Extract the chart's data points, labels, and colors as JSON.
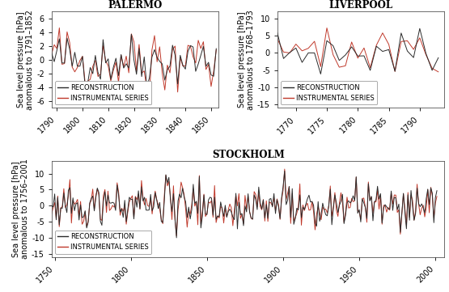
{
  "palermo": {
    "title": "PALERMO",
    "ylabel_line1": "Sea level pressure [hPa]",
    "ylabel_line2": "anomalous to 1791–1852",
    "xlim": [
      1788,
      1853
    ],
    "ylim": [
      -7,
      7
    ],
    "yticks": [
      -6,
      -4,
      -2,
      0,
      2,
      4,
      6
    ],
    "xticks": [
      1790,
      1800,
      1810,
      1820,
      1830,
      1840,
      1850
    ],
    "x_start": 1788,
    "x_end": 1852,
    "legend_labels": [
      "RECONSTRUCTION",
      "INSTRUMENTAL SERIES"
    ]
  },
  "liverpool": {
    "title": "LIVERPOOL",
    "ylabel_line1": "Sea level pressure [hPa]",
    "ylabel_line2": "anomalous to 1768–1793",
    "xlim": [
      1767,
      1794
    ],
    "ylim": [
      -16,
      12
    ],
    "yticks": [
      -15,
      -10,
      -5,
      0,
      5,
      10
    ],
    "xticks": [
      1770,
      1775,
      1780,
      1785,
      1790
    ],
    "x_start": 1767,
    "x_end": 1793,
    "legend_labels": [
      "RECONSTRUCTION",
      "INSTRUMENTAL SERIES"
    ]
  },
  "stockholm": {
    "title": "STOCKHOLM",
    "ylabel_line1": "Sea level pressure [hPa]",
    "ylabel_line2": "anomalous to 1756–2001",
    "xlim": [
      1748,
      2006
    ],
    "ylim": [
      -16,
      14
    ],
    "yticks": [
      -15,
      -10,
      -5,
      0,
      5,
      10
    ],
    "xticks": [
      1750,
      1800,
      1850,
      1900,
      1950,
      2000
    ],
    "x_start": 1748,
    "x_end": 2001,
    "legend_labels": [
      "RECONSTRUCTION",
      "INSTRUMENTAL SERIES"
    ]
  },
  "color_recon": "#2b2b2b",
  "color_instr": "#c0392b",
  "bg_color": "#ffffff",
  "line_width": 0.7,
  "font_size_title": 8.5,
  "font_size_label": 7,
  "font_size_tick": 7,
  "font_size_legend": 6
}
